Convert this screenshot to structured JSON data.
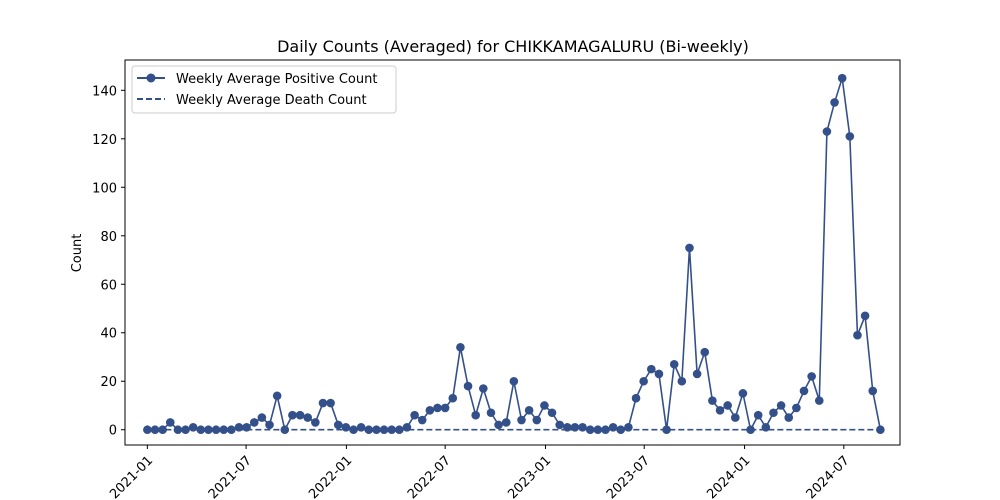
{
  "chart_data": {
    "type": "line",
    "title": "Daily Counts (Averaged) for CHIKKAMAGALURU (Bi-weekly)",
    "xlabel": "",
    "ylabel": "Count",
    "xlim": [
      "2020-11-21",
      "2024-10-12"
    ],
    "ylim": [
      -6.3,
      152.5
    ],
    "x_ticks": [
      "2021-01",
      "2021-07",
      "2022-01",
      "2022-07",
      "2023-01",
      "2023-07",
      "2024-01",
      "2024-07"
    ],
    "x_tick_dates": [
      "2021-01-01",
      "2021-07-01",
      "2022-01-01",
      "2022-07-01",
      "2023-01-01",
      "2023-07-01",
      "2024-01-01",
      "2024-07-01"
    ],
    "y_ticks": [
      0,
      20,
      40,
      60,
      80,
      100,
      120,
      140
    ],
    "grid": false,
    "legend_position": "top-left",
    "color": "#34508a",
    "x": [
      "2021-01-01",
      "2021-01-15",
      "2021-01-29",
      "2021-02-12",
      "2021-02-26",
      "2021-03-12",
      "2021-03-26",
      "2021-04-09",
      "2021-04-23",
      "2021-05-07",
      "2021-05-21",
      "2021-06-04",
      "2021-06-18",
      "2021-07-02",
      "2021-07-16",
      "2021-07-30",
      "2021-08-13",
      "2021-08-27",
      "2021-09-10",
      "2021-09-24",
      "2021-10-08",
      "2021-10-22",
      "2021-11-05",
      "2021-11-19",
      "2021-12-03",
      "2021-12-17",
      "2021-12-31",
      "2022-01-14",
      "2022-01-28",
      "2022-02-11",
      "2022-02-25",
      "2022-03-11",
      "2022-03-25",
      "2022-04-08",
      "2022-04-22",
      "2022-05-06",
      "2022-05-20",
      "2022-06-03",
      "2022-06-17",
      "2022-07-01",
      "2022-07-15",
      "2022-07-29",
      "2022-08-12",
      "2022-08-26",
      "2022-09-09",
      "2022-09-23",
      "2022-10-07",
      "2022-10-21",
      "2022-11-04",
      "2022-11-18",
      "2022-12-02",
      "2022-12-16",
      "2022-12-30",
      "2023-01-13",
      "2023-01-27",
      "2023-02-10",
      "2023-02-24",
      "2023-03-10",
      "2023-03-24",
      "2023-04-07",
      "2023-04-21",
      "2023-05-05",
      "2023-05-19",
      "2023-06-02",
      "2023-06-16",
      "2023-06-30",
      "2023-07-14",
      "2023-07-28",
      "2023-08-11",
      "2023-08-25",
      "2023-09-08",
      "2023-09-22",
      "2023-10-06",
      "2023-10-20",
      "2023-11-03",
      "2023-11-17",
      "2023-12-01",
      "2023-12-15",
      "2023-12-29",
      "2024-01-12",
      "2024-01-26",
      "2024-02-09",
      "2024-02-23",
      "2024-03-08",
      "2024-03-22",
      "2024-04-05",
      "2024-04-19",
      "2024-05-03",
      "2024-05-17",
      "2024-05-31",
      "2024-06-14",
      "2024-06-28",
      "2024-07-12",
      "2024-07-26",
      "2024-08-09",
      "2024-08-23",
      "2024-09-06"
    ],
    "series": [
      {
        "name": "Weekly Average Positive Count",
        "style": "solid-with-markers",
        "values": [
          0,
          0,
          0,
          3,
          0,
          0,
          1,
          0,
          0,
          0,
          0,
          0,
          1,
          1,
          3,
          5,
          2,
          14,
          0,
          6,
          6,
          5,
          3,
          11,
          11,
          2,
          1,
          0,
          1,
          0,
          0,
          0,
          0,
          0,
          1,
          6,
          4,
          8,
          9,
          9,
          13,
          34,
          18,
          6,
          17,
          7,
          2,
          3,
          20,
          4,
          8,
          4,
          10,
          7,
          2,
          1,
          1,
          1,
          0,
          0,
          0,
          1,
          0,
          1,
          13,
          20,
          25,
          23,
          0,
          27,
          20,
          75,
          23,
          32,
          12,
          8,
          10,
          5,
          15,
          0,
          6,
          1,
          7,
          10,
          5,
          9,
          16,
          22,
          12,
          123,
          135,
          145,
          121,
          39,
          47,
          16,
          0
        ]
      },
      {
        "name": "Weekly Average Death Count",
        "style": "dashed",
        "values": [
          0,
          0,
          0,
          0,
          0,
          0,
          0,
          0,
          0,
          0,
          0,
          0,
          0,
          0,
          0,
          0,
          0,
          0,
          0,
          0,
          0,
          0,
          0,
          0,
          0,
          0,
          0,
          0,
          0,
          0,
          0,
          0,
          0,
          0,
          0,
          0,
          0,
          0,
          0,
          0,
          0,
          0,
          0,
          0,
          0,
          0,
          0,
          0,
          0,
          0,
          0,
          0,
          0,
          0,
          0,
          0,
          0,
          0,
          0,
          0,
          0,
          0,
          0,
          0,
          0,
          0,
          0,
          0,
          0,
          0,
          0,
          0,
          0,
          0,
          0,
          0,
          0,
          0,
          0,
          0,
          0,
          0,
          0,
          0,
          0,
          0,
          0,
          0,
          0,
          0,
          0,
          0,
          0,
          0,
          0,
          0,
          0
        ]
      }
    ]
  }
}
